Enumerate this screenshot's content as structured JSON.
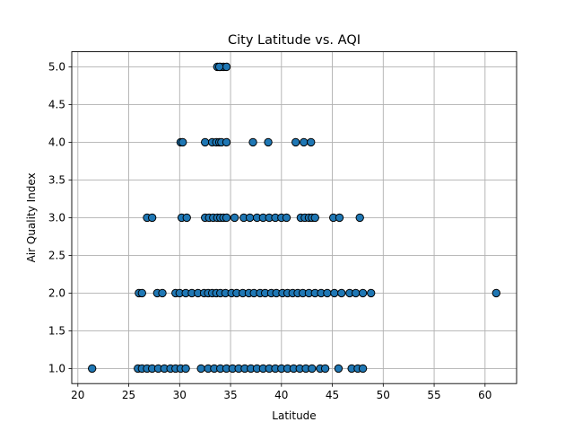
{
  "chart_data": {
    "type": "scatter",
    "title": "City Latitude vs. AQI",
    "xlabel": "Latitude",
    "ylabel": "Air Quality Index",
    "xlim": [
      19.4,
      63.1
    ],
    "ylim": [
      0.8,
      5.2
    ],
    "xticks": [
      "20",
      "25",
      "30",
      "35",
      "40",
      "45",
      "50",
      "55",
      "60"
    ],
    "yticks": [
      "1.0",
      "1.5",
      "2.0",
      "2.5",
      "3.0",
      "3.5",
      "4.0",
      "4.5",
      "5.0"
    ],
    "grid": true,
    "marker_color": "#1f77b4",
    "edge_color": "#000000",
    "series": [
      {
        "x": [
          33.7,
          34.0,
          34.3,
          34.6,
          33.9
        ],
        "y": [
          5,
          5,
          5,
          5,
          5
        ]
      },
      {
        "x": [
          30.1,
          30.3,
          32.5,
          33.2,
          33.6,
          33.9,
          34.1,
          34.6,
          37.2,
          38.7,
          41.4,
          42.2,
          42.9
        ],
        "y": [
          4,
          4,
          4,
          4,
          4,
          4,
          4,
          4,
          4,
          4,
          4,
          4,
          4
        ]
      },
      {
        "x": [
          26.8,
          27.3,
          30.2,
          30.7,
          32.5,
          32.9,
          33.3,
          33.7,
          34.0,
          34.3,
          34.6,
          35.4,
          36.3,
          36.9,
          37.6,
          38.2,
          38.8,
          39.4,
          40.0,
          40.5,
          41.9,
          42.3,
          42.7,
          43.0,
          43.3,
          45.1,
          45.7,
          47.7
        ],
        "y": [
          3,
          3,
          3,
          3,
          3,
          3,
          3,
          3,
          3,
          3,
          3,
          3,
          3,
          3,
          3,
          3,
          3,
          3,
          3,
          3,
          3,
          3,
          3,
          3,
          3,
          3,
          3,
          3
        ]
      },
      {
        "x": [
          26.0,
          26.3,
          27.8,
          28.3,
          29.6,
          30.0,
          30.6,
          31.2,
          31.8,
          32.4,
          32.8,
          33.2,
          33.6,
          34.0,
          34.5,
          35.1,
          35.6,
          36.2,
          36.8,
          37.3,
          37.9,
          38.4,
          39.0,
          39.5,
          40.1,
          40.6,
          41.1,
          41.6,
          42.1,
          42.7,
          43.3,
          43.9,
          44.5,
          45.2,
          45.9,
          46.7,
          47.3,
          48.0,
          48.8,
          61.1
        ],
        "y": [
          2,
          2,
          2,
          2,
          2,
          2,
          2,
          2,
          2,
          2,
          2,
          2,
          2,
          2,
          2,
          2,
          2,
          2,
          2,
          2,
          2,
          2,
          2,
          2,
          2,
          2,
          2,
          2,
          2,
          2,
          2,
          2,
          2,
          2,
          2,
          2,
          2,
          2,
          2,
          2
        ]
      },
      {
        "x": [
          21.4,
          25.9,
          26.3,
          26.8,
          27.3,
          27.9,
          28.5,
          29.1,
          29.6,
          30.1,
          30.6,
          32.1,
          32.8,
          33.4,
          34.0,
          34.6,
          35.2,
          35.8,
          36.4,
          37.0,
          37.6,
          38.2,
          38.8,
          39.4,
          40.0,
          40.6,
          41.2,
          41.8,
          42.4,
          43.0,
          43.8,
          44.3,
          45.6,
          46.9,
          47.5,
          48.0
        ],
        "y": [
          1,
          1,
          1,
          1,
          1,
          1,
          1,
          1,
          1,
          1,
          1,
          1,
          1,
          1,
          1,
          1,
          1,
          1,
          1,
          1,
          1,
          1,
          1,
          1,
          1,
          1,
          1,
          1,
          1,
          1,
          1,
          1,
          1,
          1,
          1,
          1
        ]
      }
    ]
  }
}
